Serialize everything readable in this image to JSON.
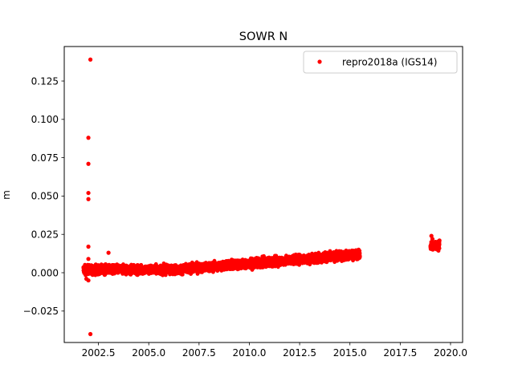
{
  "chart_data": {
    "type": "scatter",
    "title": "SOWR N",
    "xlabel": "",
    "ylabel": "m",
    "xlim": [
      2000.8,
      2020.6
    ],
    "ylim": [
      -0.0455,
      0.1475
    ],
    "xticks": [
      2002.5,
      2005.0,
      2007.5,
      2010.0,
      2012.5,
      2015.0,
      2017.5,
      2020.0
    ],
    "xtick_labels": [
      "2002.5",
      "2005.0",
      "2007.5",
      "2010.0",
      "2012.5",
      "2015.0",
      "2017.5",
      "2020.0"
    ],
    "yticks": [
      -0.025,
      0.0,
      0.025,
      0.05,
      0.075,
      0.1,
      0.125
    ],
    "ytick_labels": [
      "−0.025",
      "0.000",
      "0.025",
      "0.050",
      "0.075",
      "0.100",
      "0.125"
    ],
    "grid": false,
    "legend_position": "upper-right",
    "series": [
      {
        "name": "repro2018a (IGS14)",
        "color": "#ff0000",
        "marker": "circle",
        "trend": {
          "segments": [
            {
              "x_start": 2001.75,
              "x_end": 2015.5,
              "y_start": 0.002,
              "y_mid_x": 2006.5,
              "y_mid": 0.002,
              "y_end": 0.012
            },
            {
              "x_start": 2019.0,
              "x_end": 2019.45,
              "y_start": 0.017,
              "y_mid_x": 2019.2,
              "y_mid": 0.018,
              "y_end": 0.018
            }
          ],
          "scatter_amplitude": 0.003
        },
        "outliers": [
          {
            "x": 2002.1,
            "y": 0.139
          },
          {
            "x": 2002.0,
            "y": 0.088
          },
          {
            "x": 2002.0,
            "y": 0.071
          },
          {
            "x": 2002.0,
            "y": 0.052
          },
          {
            "x": 2002.0,
            "y": 0.048
          },
          {
            "x": 2002.0,
            "y": 0.017
          },
          {
            "x": 2002.0,
            "y": 0.009
          },
          {
            "x": 2002.1,
            "y": -0.04
          },
          {
            "x": 2003.0,
            "y": 0.013
          },
          {
            "x": 2001.9,
            "y": -0.004
          },
          {
            "x": 2002.0,
            "y": -0.005
          },
          {
            "x": 2019.05,
            "y": 0.024
          },
          {
            "x": 2019.1,
            "y": 0.022
          },
          {
            "x": 2019.45,
            "y": 0.021
          }
        ]
      }
    ]
  }
}
